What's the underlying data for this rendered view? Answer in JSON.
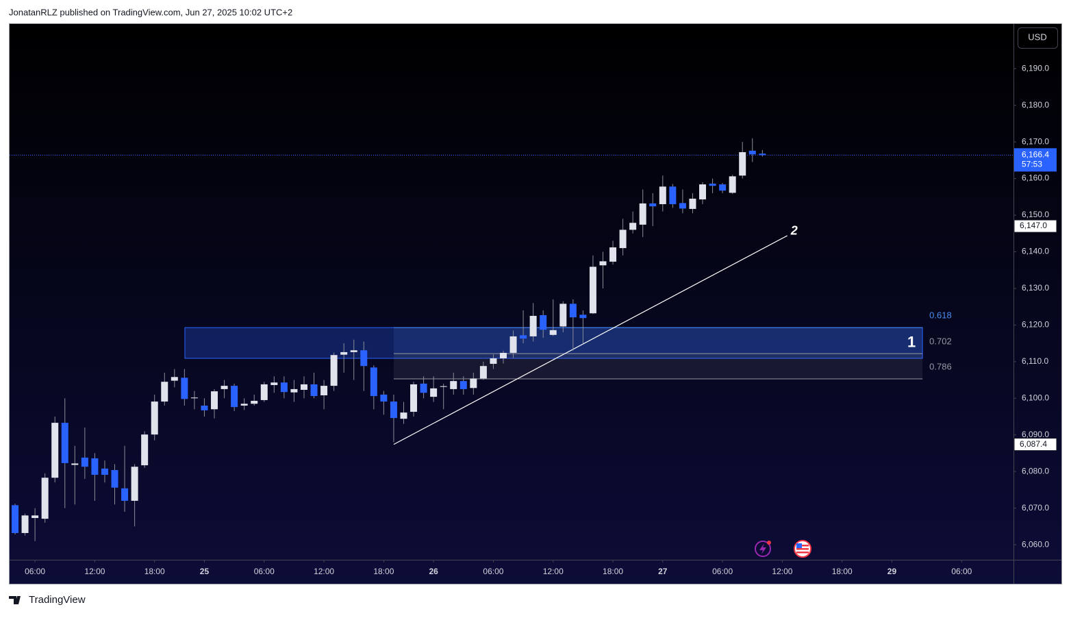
{
  "header": "JonatanRLZ published on TradingView.com, Jun 27, 2025 10:02 UTC+2",
  "footer": "TradingView",
  "currency": "USD",
  "chart_data": {
    "type": "candlestick",
    "up_color": "#e0e3eb",
    "down_color": "#2962ff",
    "wick_color": "#8a8d96",
    "open": [
      6070.8,
      6063.2,
      6067.3,
      6067.1,
      6078.3,
      6093.3,
      6081.8,
      6083.8,
      6083.6,
      6080.8,
      6080.4,
      6075.4,
      6072.0,
      6081.7,
      6090.1,
      6099.1,
      6104.8,
      6105.6,
      6100.0,
      6098.0,
      6097.0,
      6102.5,
      6103.4,
      6098.0,
      6098.5,
      6099.5,
      6103.6,
      6104.3,
      6101.6,
      6102.3,
      6103.8,
      6100.8,
      6103.4,
      6111.9,
      6112.6,
      6113.1,
      6108.4,
      6101.0,
      6099.1,
      6094.4,
      6096.3,
      6104.0,
      6100.4,
      6103.1,
      6102.5,
      6104.7,
      6102.8,
      6105.4,
      6109.4,
      6110.9,
      6112.4,
      6117.2,
      6116.9,
      6122.7,
      6117.3,
      6119.6,
      6125.8,
      6122.8,
      6123.2,
      6136.3,
      6137.3,
      6141.0,
      6146.0,
      6147.4,
      6153.2,
      6153.0,
      6157.8,
      6153.3,
      6151.7,
      6154.3,
      6158.6,
      6158.4,
      6156.1,
      6160.8,
      6167.6,
      6166.8
    ],
    "high": [
      6071.2,
      6068.5,
      6070.0,
      6079.5,
      6095.0,
      6100.0,
      6087.0,
      6092.0,
      6085.0,
      6083.0,
      6082.0,
      6087.0,
      6082.0,
      6091.0,
      6101.0,
      6107.0,
      6108.0,
      6108.0,
      6102.0,
      6100.0,
      6102.5,
      6105.0,
      6104.0,
      6100.0,
      6101.0,
      6104.5,
      6106.0,
      6106.0,
      6105.0,
      6106.0,
      6107.0,
      6105.0,
      6112.5,
      6115.0,
      6116.0,
      6115.5,
      6109.0,
      6102.0,
      6101.0,
      6099.0,
      6104.5,
      6106.0,
      6106.0,
      6104.0,
      6107.0,
      6106.0,
      6107.0,
      6110.0,
      6112.0,
      6113.0,
      6118.5,
      6124.0,
      6126.0,
      6124.0,
      6127.0,
      6126.5,
      6127.0,
      6124.0,
      6139.0,
      6140.0,
      6143.0,
      6149.0,
      6151.0,
      6157.0,
      6156.0,
      6160.8,
      6158.5,
      6157.0,
      6156.0,
      6159.0,
      6160.0,
      6158.8,
      6161.0,
      6170.0,
      6171.0,
      6167.8
    ],
    "low": [
      6062.8,
      6062.5,
      6061.0,
      6066.0,
      6077.0,
      6070.0,
      6071.0,
      6078.0,
      6072.0,
      6077.0,
      6071.0,
      6069.0,
      6065.0,
      6081.0,
      6088.5,
      6098.0,
      6103.0,
      6098.0,
      6097.0,
      6095.0,
      6094.5,
      6100.0,
      6096.5,
      6096.8,
      6098.0,
      6099.0,
      6101.5,
      6100.0,
      6099.0,
      6100.0,
      6100.0,
      6097.0,
      6102.0,
      6107.0,
      6105.0,
      6102.0,
      6097.0,
      6095.5,
      6088.0,
      6093.0,
      6095.0,
      6100.0,
      6099.0,
      6097.0,
      6101.0,
      6101.0,
      6101.0,
      6105.0,
      6108.0,
      6109.5,
      6111.0,
      6115.0,
      6115.5,
      6116.5,
      6117.0,
      6118.0,
      6113.0,
      6115.0,
      6123.0,
      6130.0,
      6136.5,
      6139.0,
      6145.0,
      6144.0,
      6147.0,
      6151.0,
      6152.0,
      6150.5,
      6150.5,
      6153.0,
      6156.0,
      6156.0,
      6155.8,
      6160.0,
      6164.5,
      6166.0
    ],
    "close": [
      6063.2,
      6068.0,
      6068.0,
      6078.3,
      6093.3,
      6082.3,
      6082.2,
      6081.3,
      6079.1,
      6079.1,
      6075.6,
      6072.0,
      6081.3,
      6090.1,
      6099.1,
      6104.5,
      6105.8,
      6099.8,
      6100.2,
      6096.7,
      6101.9,
      6103.4,
      6097.6,
      6098.5,
      6099.3,
      6103.8,
      6104.3,
      6101.7,
      6102.5,
      6103.8,
      6100.6,
      6103.4,
      6111.8,
      6112.6,
      6113.1,
      6108.8,
      6100.6,
      6099.1,
      6094.6,
      6096.1,
      6103.8,
      6101.5,
      6102.7,
      6103.3,
      6104.7,
      6102.5,
      6105.4,
      6108.8,
      6110.9,
      6112.4,
      6116.9,
      6116.3,
      6122.5,
      6118.7,
      6118.6,
      6125.8,
      6122.1,
      6121.9,
      6135.9,
      6137.4,
      6141.2,
      6146.0,
      6147.9,
      6153.2,
      6152.4,
      6157.8,
      6153.0,
      6151.8,
      6154.5,
      6158.4,
      6158.0,
      6156.7,
      6160.6,
      6167.2,
      6166.6,
      6166.4
    ],
    "xlim": [
      -0.55,
      100.2
    ],
    "xticks": [
      {
        "value": 2,
        "label": "06:00"
      },
      {
        "value": 8,
        "label": "12:00"
      },
      {
        "value": 14,
        "label": "18:00"
      },
      {
        "value": 19,
        "label": "25"
      },
      {
        "value": 25,
        "label": "06:00"
      },
      {
        "value": 31,
        "label": "12:00"
      },
      {
        "value": 37,
        "label": "18:00"
      },
      {
        "value": 42,
        "label": "26"
      },
      {
        "value": 48,
        "label": "06:00"
      },
      {
        "value": 54,
        "label": "12:00"
      },
      {
        "value": 60,
        "label": "18:00"
      },
      {
        "value": 65,
        "label": "27"
      },
      {
        "value": 71,
        "label": "06:00"
      },
      {
        "value": 77,
        "label": "12:00"
      },
      {
        "value": 83,
        "label": "18:00"
      },
      {
        "value": 88,
        "label": "29"
      },
      {
        "value": 95,
        "label": "06:00"
      }
    ],
    "ylim": [
      6055.9,
      6202.2
    ],
    "yticks": [
      {
        "value": 6060,
        "label": "6,060.0"
      },
      {
        "value": 6070,
        "label": "6,070.0"
      },
      {
        "value": 6080,
        "label": "6,080.0"
      },
      {
        "value": 6090,
        "label": "6,090.0"
      },
      {
        "value": 6100,
        "label": "6,100.0"
      },
      {
        "value": 6110,
        "label": "6,110.0"
      },
      {
        "value": 6120,
        "label": "6,120.0"
      },
      {
        "value": 6130,
        "label": "6,130.0"
      },
      {
        "value": 6140,
        "label": "6,140.0"
      },
      {
        "value": 6150,
        "label": "6,150.0"
      },
      {
        "value": 6160,
        "label": "6,160.0"
      },
      {
        "value": 6170,
        "label": "6,170.0"
      },
      {
        "value": 6180,
        "label": "6,180.0"
      },
      {
        "value": 6190,
        "label": "6,190.0"
      }
    ],
    "last_price": {
      "value": 6166.4,
      "label": "6,166.4",
      "countdown": "57:53",
      "color": "#2962ff"
    },
    "price_markers": [
      {
        "value": 6147.0,
        "label": "6,147.0"
      },
      {
        "value": 6087.4,
        "label": "6,087.4"
      }
    ],
    "zone": {
      "label": "1",
      "x": [
        17.04,
        91.07
      ],
      "y": [
        6119.3,
        6110.9
      ],
      "color": "#2962ff"
    },
    "fib": {
      "x": [
        38,
        91.07
      ],
      "levels": [
        {
          "ratio": 0.618,
          "price": 6119.3,
          "color": "#4a8cf0"
        },
        {
          "ratio": 0.702,
          "price": 6112.2,
          "color": "#9598a1"
        },
        {
          "ratio": 0.786,
          "price": 6105.3,
          "color": "#9598a1"
        }
      ]
    },
    "trendline": {
      "label": "2",
      "x": [
        38,
        77.5
      ],
      "y": [
        6087.4,
        6144.4
      ],
      "color": "#ffffff"
    }
  }
}
